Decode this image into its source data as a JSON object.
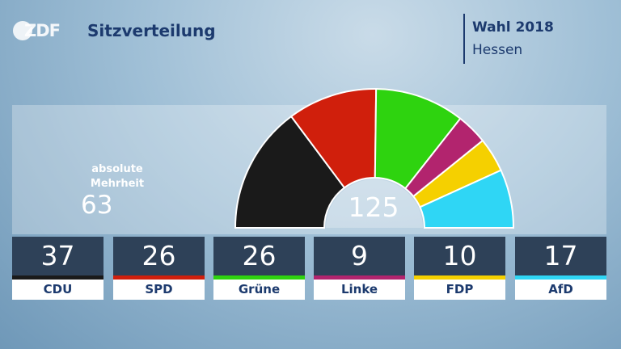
{
  "header": {
    "logo": "ZDF",
    "title": "Sitzverteilung",
    "election": "Wahl 2018",
    "region": "Hessen"
  },
  "majority": {
    "label_line1": "absolute",
    "label_line2": "Mehrheit",
    "value": "63"
  },
  "total_seats": "125",
  "chart_data": {
    "type": "pie",
    "subtype": "parliament-semicircle",
    "title": "Sitzverteilung",
    "categories": [
      "CDU",
      "SPD",
      "Grüne",
      "Linke",
      "FDP",
      "AfD"
    ],
    "values": [
      37,
      26,
      26,
      9,
      10,
      17
    ],
    "colors": [
      "#1a1a1a",
      "#d01f0c",
      "#2ed30f",
      "#b2246e",
      "#f5d000",
      "#2fd6f5"
    ],
    "total": 125,
    "majority": 63
  }
}
